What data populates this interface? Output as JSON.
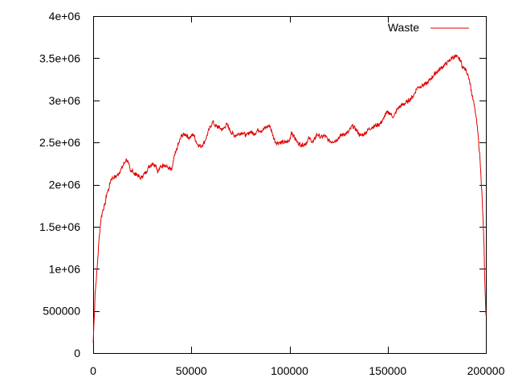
{
  "colors": {
    "series": "#e00000",
    "axis": "#000000",
    "background": "#ffffff"
  },
  "chart_data": {
    "type": "line",
    "title": "",
    "xlabel": "",
    "ylabel": "",
    "xlim": [
      0,
      200000
    ],
    "ylim": [
      0,
      4000000
    ],
    "grid": false,
    "legend_position": "top-right",
    "x_ticks": [
      0,
      50000,
      100000,
      150000,
      200000
    ],
    "x_tick_labels": [
      "0",
      "50000",
      "100000",
      "150000",
      "200000"
    ],
    "y_ticks": [
      0,
      500000,
      1000000,
      1500000,
      2000000,
      2500000,
      3000000,
      3500000,
      4000000
    ],
    "y_tick_labels": [
      "0",
      "500000",
      "1e+06",
      "1.5e+06",
      "2e+06",
      "2.5e+06",
      "3e+06",
      "3.5e+06",
      "4e+06"
    ],
    "series": [
      {
        "name": "Waste",
        "color": "#e00000",
        "x": [
          0,
          1000,
          2000,
          3000,
          4000,
          5000,
          6000,
          7000,
          8000,
          9000,
          10000,
          12000,
          14000,
          16000,
          17000,
          18000,
          19000,
          20000,
          21000,
          22000,
          24000,
          25000,
          27000,
          28000,
          30000,
          32000,
          33000,
          34000,
          36000,
          38000,
          40000,
          41000,
          42000,
          43000,
          45000,
          47000,
          49000,
          51000,
          53000,
          55000,
          57000,
          59000,
          61000,
          62000,
          64000,
          66000,
          68000,
          70000,
          72000,
          74000,
          76000,
          78000,
          80000,
          82000,
          84000,
          86000,
          88000,
          90000,
          91000,
          92000,
          93000,
          95000,
          98000,
          100000,
          101000,
          102000,
          104000,
          106000,
          108000,
          110000,
          112000,
          114000,
          116000,
          118000,
          120000,
          122000,
          124000,
          126000,
          128000,
          130000,
          132000,
          134000,
          136000,
          138000,
          140000,
          142000,
          144000,
          146000,
          148000,
          149000,
          151000,
          153000,
          155000,
          157000,
          160000,
          163000,
          165000,
          168000,
          170000,
          172000,
          175000,
          177000,
          179000,
          181000,
          183000,
          185000,
          186000,
          187000,
          188000,
          189000,
          190000,
          191000,
          192000,
          193000,
          194000,
          195000,
          196000,
          197000,
          198000,
          199000,
          199500,
          200000
        ],
        "values": [
          120000,
          700000,
          1000000,
          1350000,
          1600000,
          1700000,
          1760000,
          1900000,
          1950000,
          2060000,
          2080000,
          2100000,
          2170000,
          2260000,
          2300000,
          2250000,
          2150000,
          2180000,
          2110000,
          2130000,
          2070000,
          2100000,
          2150000,
          2200000,
          2250000,
          2230000,
          2150000,
          2200000,
          2240000,
          2200000,
          2170000,
          2300000,
          2380000,
          2450000,
          2580000,
          2600000,
          2550000,
          2600000,
          2480000,
          2450000,
          2520000,
          2650000,
          2750000,
          2700000,
          2680000,
          2650000,
          2720000,
          2630000,
          2580000,
          2600000,
          2620000,
          2580000,
          2630000,
          2600000,
          2650000,
          2640000,
          2680000,
          2700000,
          2620000,
          2550000,
          2500000,
          2500000,
          2500000,
          2520000,
          2630000,
          2580000,
          2500000,
          2470000,
          2480000,
          2550000,
          2500000,
          2600000,
          2560000,
          2580000,
          2520000,
          2510000,
          2530000,
          2580000,
          2600000,
          2620000,
          2700000,
          2650000,
          2580000,
          2600000,
          2650000,
          2680000,
          2700000,
          2720000,
          2780000,
          2850000,
          2850000,
          2800000,
          2900000,
          2940000,
          2980000,
          3050000,
          3150000,
          3180000,
          3200000,
          3260000,
          3340000,
          3380000,
          3420000,
          3460000,
          3510000,
          3520000,
          3500000,
          3480000,
          3400000,
          3380000,
          3350000,
          3300000,
          3200000,
          3050000,
          2950000,
          2800000,
          2600000,
          2300000,
          1900000,
          1300000,
          800000,
          450000
        ]
      }
    ]
  }
}
